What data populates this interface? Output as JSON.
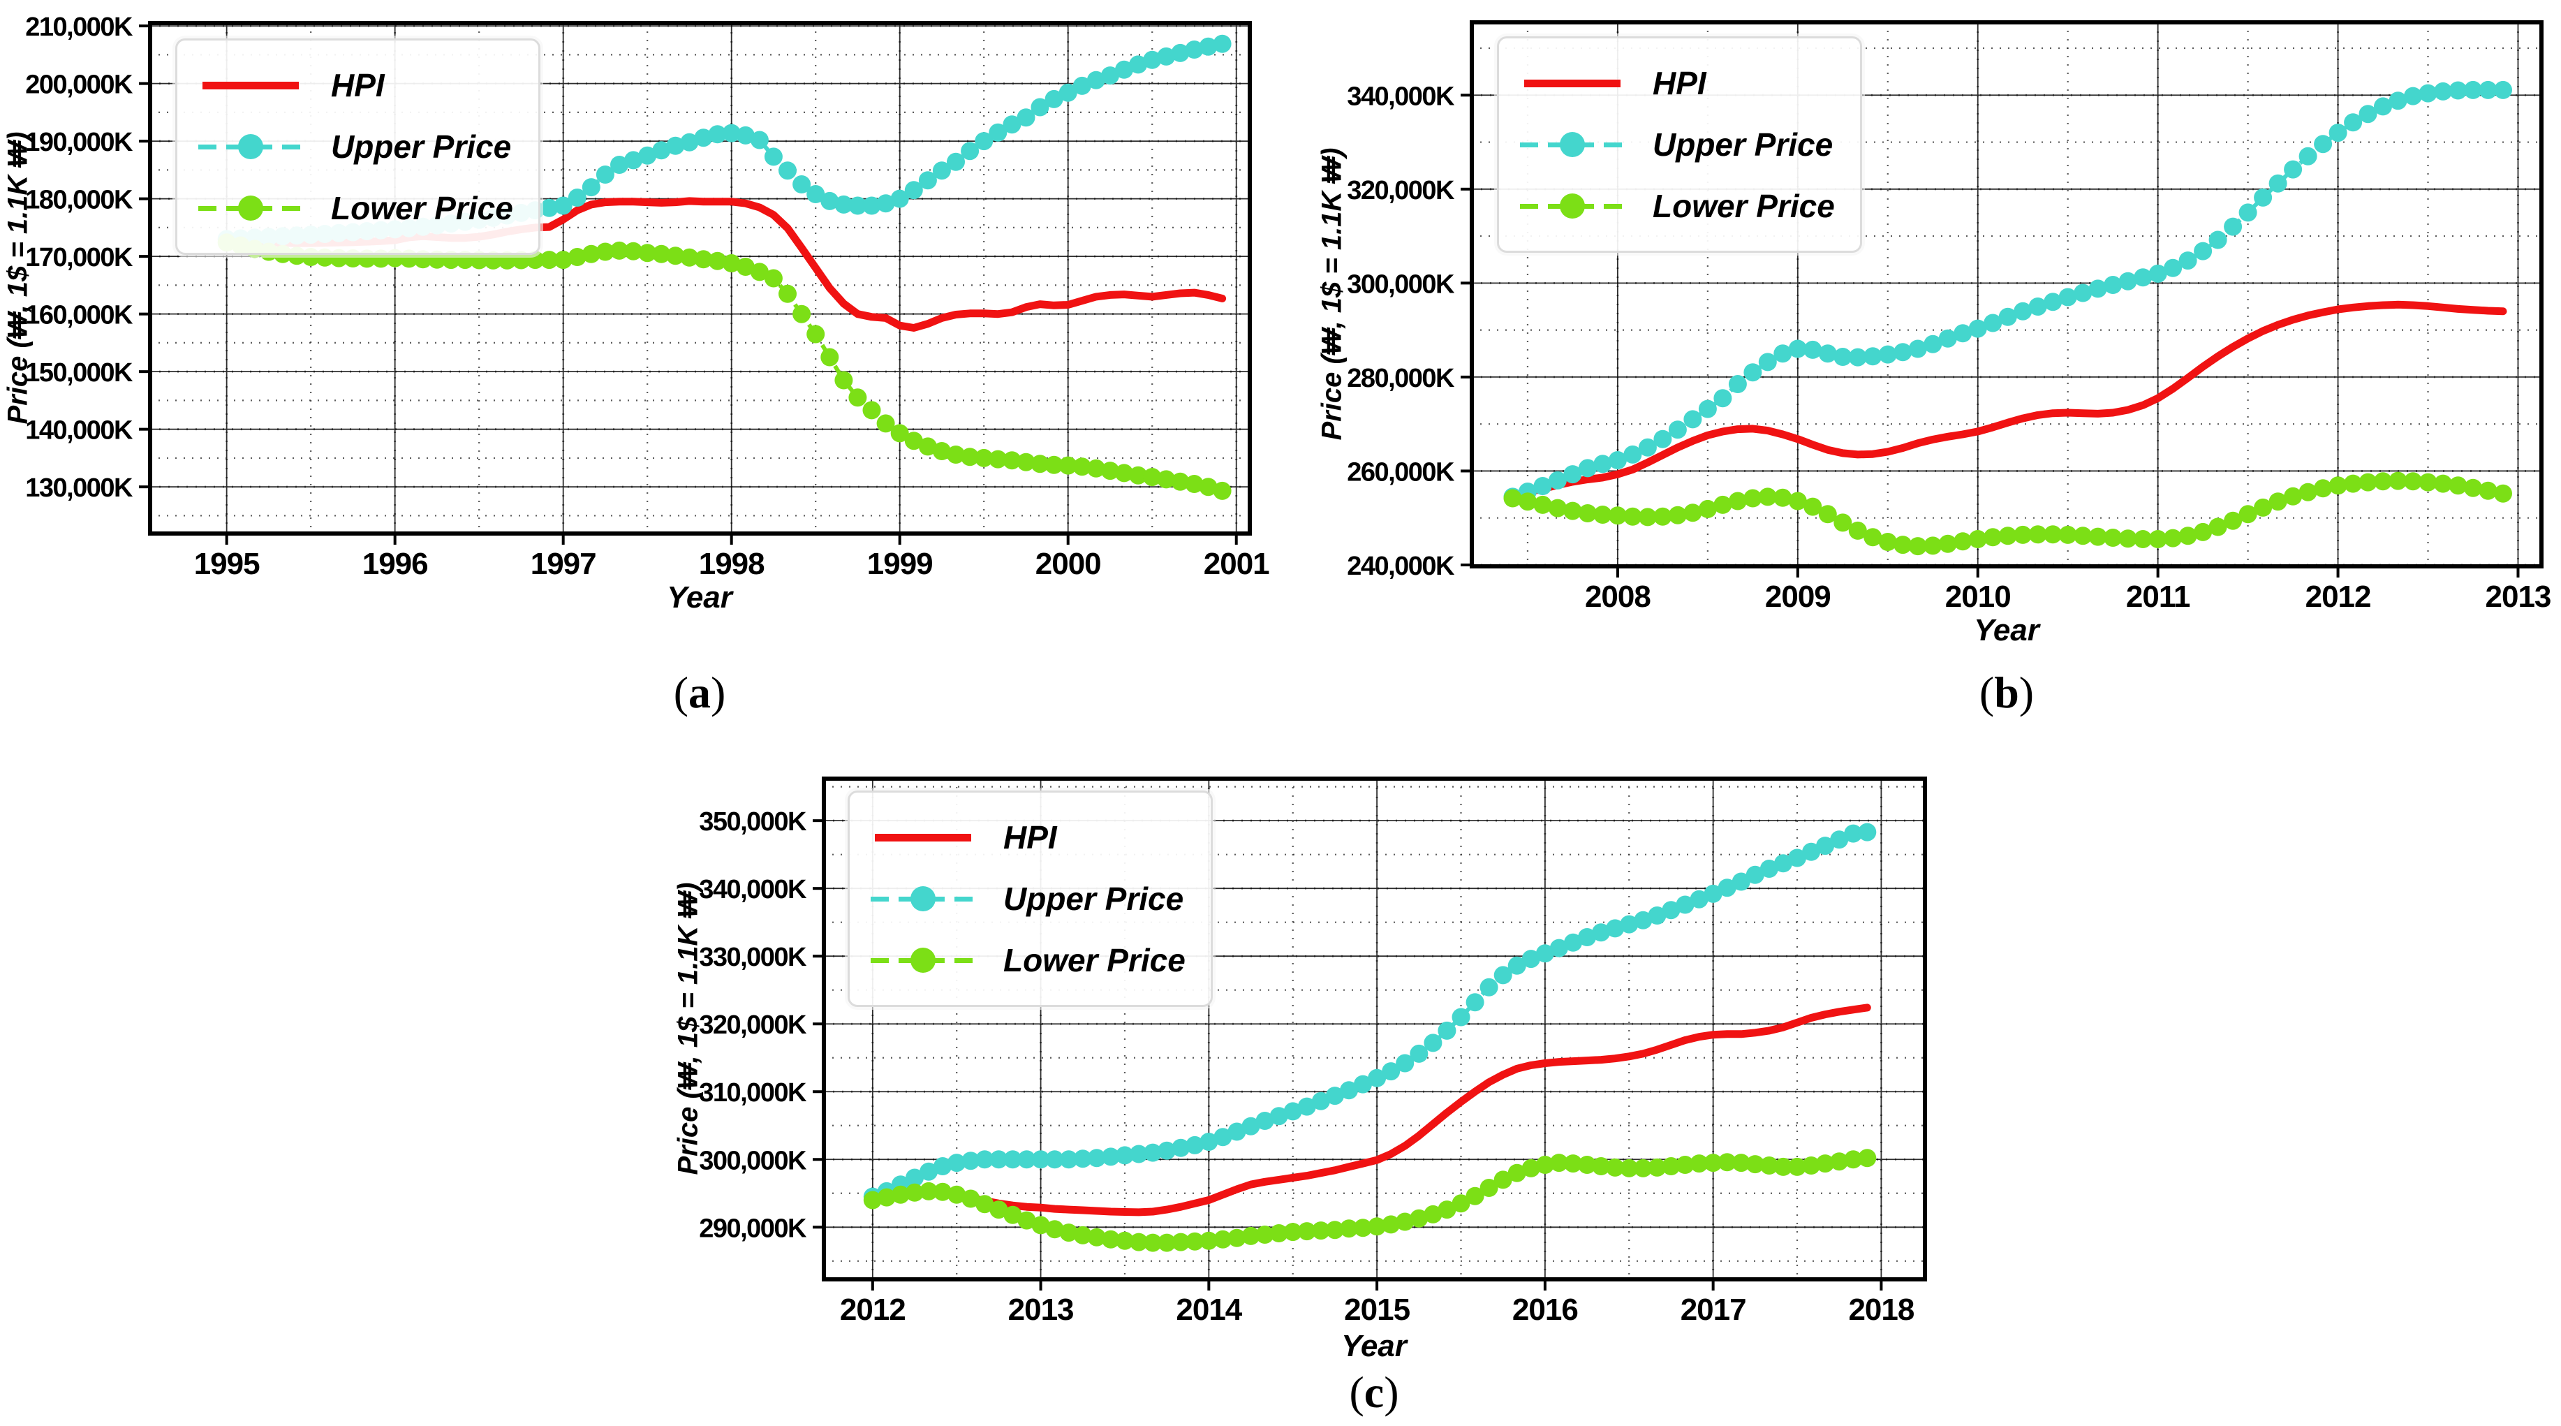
{
  "figure": {
    "background": "#ffffff"
  },
  "legend_entries": [
    "HPI",
    "Upper Price",
    "Lower Price"
  ],
  "colors": {
    "hpi": "#f01212",
    "upper": "#44d6cd",
    "lower": "#7cdf16",
    "grid": "#2e2e2e",
    "spine": "#000000"
  },
  "chart_data": [
    {
      "id": "a",
      "type": "line",
      "caption": {
        "open": "(",
        "letter": "a",
        "close": ")"
      },
      "xlabel": "Year",
      "ylabel": "Price (₩, 1$ = 1.1K ₩)",
      "legend": {
        "position": "upper left",
        "entries": [
          "HPI",
          "Upper Price",
          "Lower Price"
        ]
      },
      "xlim": [
        1994.545,
        2001.08
      ],
      "ylim": [
        121900,
        210500
      ],
      "grid": true,
      "xticks": [
        {
          "v": 1995,
          "label": "1995"
        },
        {
          "v": 1996,
          "label": "1996"
        },
        {
          "v": 1997,
          "label": "1997"
        },
        {
          "v": 1998,
          "label": "1998"
        },
        {
          "v": 1999,
          "label": "1999"
        },
        {
          "v": 2000,
          "label": "2000"
        },
        {
          "v": 2001,
          "label": "2001"
        }
      ],
      "yticks": [
        {
          "v": 130000,
          "label": "130,000K"
        },
        {
          "v": 140000,
          "label": "140,000K"
        },
        {
          "v": 150000,
          "label": "150,000K"
        },
        {
          "v": 160000,
          "label": "160,000K"
        },
        {
          "v": 170000,
          "label": "170,000K"
        },
        {
          "v": 180000,
          "label": "180,000K"
        },
        {
          "v": 190000,
          "label": "190,000K"
        },
        {
          "v": 200000,
          "label": "200,000K"
        },
        {
          "v": 210000,
          "label": "210,000K"
        }
      ],
      "x_start": 1995.0,
      "x_step": 0.083333,
      "series": [
        {
          "name": "HPI",
          "color": "#f01212",
          "line_style": "solid",
          "marker": "none",
          "values": [
            172600,
            172500,
            172450,
            172400,
            172350,
            172300,
            172300,
            172350,
            172400,
            172450,
            172550,
            172650,
            172800,
            173300,
            173500,
            173350,
            173200,
            173200,
            173400,
            173800,
            174300,
            174700,
            175000,
            175100,
            176400,
            178000,
            179000,
            179400,
            179500,
            179500,
            179400,
            179300,
            179400,
            179600,
            179500,
            179500,
            179500,
            179200,
            178500,
            177200,
            174900,
            171500,
            168000,
            164500,
            161800,
            160000,
            159500,
            159300,
            158000,
            157600,
            158300,
            159300,
            159900,
            160100,
            160100,
            160000,
            160300,
            161200,
            161700,
            161500,
            161600,
            162300,
            163000,
            163300,
            163400,
            163200,
            163000,
            163300,
            163600,
            163700,
            163300,
            162700
          ]
        },
        {
          "name": "Upper Price",
          "color": "#44d6cd",
          "line_style": "dashed",
          "marker": "circle",
          "values": [
            173000,
            173120,
            173250,
            173380,
            173500,
            173620,
            173760,
            173900,
            174050,
            174200,
            174380,
            174550,
            174700,
            174900,
            175150,
            175400,
            175700,
            176000,
            176350,
            176700,
            177100,
            177550,
            178000,
            178400,
            178800,
            180200,
            182000,
            184200,
            185900,
            186700,
            187500,
            188400,
            189200,
            189800,
            190600,
            191200,
            191400,
            191000,
            190200,
            187300,
            184900,
            182500,
            180800,
            179600,
            179000,
            178800,
            178800,
            179200,
            180000,
            181500,
            183200,
            184900,
            186400,
            188300,
            190000,
            191500,
            192900,
            194100,
            195900,
            197300,
            198400,
            199600,
            200600,
            201400,
            202400,
            203300,
            204100,
            204700,
            205300,
            205900,
            206400,
            206900
          ]
        },
        {
          "name": "Lower Price",
          "color": "#7cdf16",
          "line_style": "dashed",
          "marker": "circle",
          "values": [
            172400,
            171900,
            171300,
            170800,
            170400,
            170100,
            169900,
            169800,
            169700,
            169650,
            169600,
            169600,
            169700,
            169600,
            169500,
            169450,
            169400,
            169400,
            169350,
            169300,
            169300,
            169350,
            169400,
            169400,
            169400,
            169900,
            170400,
            170800,
            171000,
            170900,
            170600,
            170400,
            170100,
            169800,
            169500,
            169200,
            168800,
            168200,
            167300,
            166200,
            163500,
            160000,
            156500,
            152500,
            148500,
            145500,
            143300,
            141000,
            139300,
            138000,
            137000,
            136200,
            135600,
            135200,
            135000,
            134800,
            134600,
            134300,
            134000,
            133800,
            133700,
            133500,
            133200,
            132800,
            132400,
            132000,
            131700,
            131300,
            130900,
            130500,
            130000,
            129300
          ]
        }
      ]
    },
    {
      "id": "b",
      "type": "line",
      "caption": {
        "open": "(",
        "letter": "b",
        "close": ")"
      },
      "xlabel": "Year",
      "ylabel": "Price (₩, 1$ = 1.1K ₩)",
      "legend": {
        "position": "upper left",
        "entries": [
          "HPI",
          "Upper Price",
          "Lower Price"
        ]
      },
      "xlim": [
        2007.19,
        2013.13
      ],
      "ylim": [
        239700,
        355500
      ],
      "grid": true,
      "xticks": [
        {
          "v": 2008,
          "label": "2008"
        },
        {
          "v": 2009,
          "label": "2009"
        },
        {
          "v": 2010,
          "label": "2010"
        },
        {
          "v": 2011,
          "label": "2011"
        },
        {
          "v": 2012,
          "label": "2012"
        },
        {
          "v": 2013,
          "label": "2013"
        }
      ],
      "yticks": [
        {
          "v": 240000,
          "label": "240,000K"
        },
        {
          "v": 260000,
          "label": "260,000K"
        },
        {
          "v": 280000,
          "label": "280,000K"
        },
        {
          "v": 300000,
          "label": "300,000K"
        },
        {
          "v": 320000,
          "label": "320,000K"
        },
        {
          "v": 340000,
          "label": "340,000K"
        }
      ],
      "x_start": 2007.4167,
      "x_step": 0.083333,
      "series": [
        {
          "name": "HPI",
          "color": "#f01212",
          "line_style": "solid",
          "marker": "none",
          "values": [
            254800,
            255500,
            256200,
            257000,
            257700,
            258200,
            258600,
            259300,
            260300,
            261800,
            263400,
            265000,
            266400,
            267600,
            268400,
            268900,
            269000,
            268600,
            267800,
            266800,
            265600,
            264500,
            263800,
            263500,
            263600,
            264100,
            264900,
            265900,
            266700,
            267300,
            267800,
            268400,
            269300,
            270300,
            271200,
            271900,
            272300,
            272400,
            272300,
            272200,
            272400,
            273000,
            274000,
            275500,
            277500,
            279800,
            282200,
            284400,
            286400,
            288200,
            289800,
            291100,
            292200,
            293100,
            293800,
            294400,
            294800,
            295100,
            295300,
            295400,
            295300,
            295100,
            294800,
            294500,
            294300,
            294100,
            294000
          ]
        },
        {
          "name": "Upper Price",
          "color": "#44d6cd",
          "line_style": "dashed",
          "marker": "circle",
          "values": [
            254500,
            255600,
            256800,
            258000,
            259300,
            260600,
            261500,
            262300,
            263500,
            265000,
            266800,
            268800,
            271000,
            273200,
            275500,
            278500,
            281000,
            283200,
            285000,
            286000,
            285800,
            285000,
            284300,
            284200,
            284400,
            284800,
            285300,
            286000,
            287000,
            288200,
            289300,
            290300,
            291500,
            292800,
            294000,
            295000,
            296000,
            297000,
            297900,
            298800,
            299600,
            300400,
            301200,
            302000,
            303200,
            304800,
            306800,
            309200,
            312000,
            315000,
            318200,
            321200,
            324200,
            327000,
            329600,
            332000,
            334200,
            336000,
            337600,
            338800,
            339800,
            340400,
            340800,
            341000,
            341100,
            341100,
            341100
          ]
        },
        {
          "name": "Lower Price",
          "color": "#7cdf16",
          "line_style": "dashed",
          "marker": "circle",
          "values": [
            254200,
            253500,
            252800,
            252100,
            251500,
            251000,
            250700,
            250500,
            250300,
            250200,
            250300,
            250600,
            251100,
            251900,
            252800,
            253600,
            254200,
            254500,
            254300,
            253600,
            252400,
            250800,
            249000,
            247300,
            245900,
            244900,
            244300,
            244000,
            244100,
            244500,
            245000,
            245500,
            245900,
            246200,
            246400,
            246500,
            246500,
            246400,
            246200,
            246000,
            245800,
            245600,
            245500,
            245500,
            245700,
            246200,
            247000,
            248100,
            249400,
            250800,
            252200,
            253500,
            254600,
            255500,
            256300,
            256900,
            257300,
            257600,
            257800,
            257900,
            257800,
            257600,
            257300,
            256900,
            256400,
            255800,
            255200
          ]
        }
      ]
    },
    {
      "id": "c",
      "type": "line",
      "caption": {
        "open": "(",
        "letter": "c",
        "close": ")"
      },
      "xlabel": "Year",
      "ylabel": "Price (₩, 1$ = 1.1K ₩)",
      "legend": {
        "position": "upper left",
        "entries": [
          "HPI",
          "Upper Price",
          "Lower Price"
        ]
      },
      "xlim": [
        2011.71,
        2018.26
      ],
      "ylim": [
        282300,
        356200
      ],
      "grid": true,
      "xticks": [
        {
          "v": 2012,
          "label": "2012"
        },
        {
          "v": 2013,
          "label": "2013"
        },
        {
          "v": 2014,
          "label": "2014"
        },
        {
          "v": 2015,
          "label": "2015"
        },
        {
          "v": 2016,
          "label": "2016"
        },
        {
          "v": 2017,
          "label": "2017"
        },
        {
          "v": 2018,
          "label": "2018"
        }
      ],
      "yticks": [
        {
          "v": 290000,
          "label": "290,000K"
        },
        {
          "v": 300000,
          "label": "300,000K"
        },
        {
          "v": 310000,
          "label": "310,000K"
        },
        {
          "v": 320000,
          "label": "320,000K"
        },
        {
          "v": 330000,
          "label": "330,000K"
        },
        {
          "v": 340000,
          "label": "340,000K"
        },
        {
          "v": 350000,
          "label": "350,000K"
        }
      ],
      "x_start": 2012.0,
      "x_step": 0.083333,
      "series": [
        {
          "name": "HPI",
          "color": "#f01212",
          "line_style": "solid",
          "marker": "none",
          "values": [
            294800,
            295000,
            295200,
            295300,
            295200,
            295000,
            294700,
            294300,
            293900,
            293500,
            293200,
            293000,
            292900,
            292700,
            292600,
            292500,
            292400,
            292300,
            292250,
            292200,
            292300,
            292600,
            293000,
            293500,
            294000,
            294800,
            295600,
            296300,
            296700,
            297000,
            297300,
            297600,
            298000,
            298400,
            298900,
            299400,
            299900,
            300800,
            302000,
            303500,
            305200,
            306900,
            308500,
            310000,
            311400,
            312500,
            313400,
            313900,
            314200,
            314400,
            314500,
            314600,
            314700,
            314900,
            315200,
            315600,
            316200,
            316900,
            317600,
            318100,
            318400,
            318500,
            318500,
            318700,
            319000,
            319500,
            320200,
            320900,
            321400,
            321800,
            322100,
            322400
          ]
        },
        {
          "name": "Upper Price",
          "color": "#44d6cd",
          "line_style": "dashed",
          "marker": "circle",
          "values": [
            294500,
            295300,
            296300,
            297300,
            298200,
            299000,
            299500,
            299800,
            300000,
            300000,
            300000,
            300000,
            300000,
            300000,
            300000,
            300100,
            300200,
            300400,
            300600,
            300800,
            301000,
            301300,
            301700,
            302100,
            302600,
            303300,
            304100,
            304900,
            305700,
            306400,
            307100,
            307800,
            308600,
            309400,
            310200,
            311100,
            312000,
            313000,
            314200,
            315600,
            317200,
            319000,
            321000,
            323200,
            325400,
            327200,
            328600,
            329600,
            330400,
            331200,
            332000,
            332800,
            333500,
            334100,
            334700,
            335300,
            336000,
            336800,
            337600,
            338400,
            339200,
            340100,
            341000,
            342000,
            342900,
            343700,
            344500,
            345400,
            346300,
            347200,
            348100,
            348300
          ]
        },
        {
          "name": "Lower Price",
          "color": "#7cdf16",
          "line_style": "dashed",
          "marker": "circle",
          "values": [
            294000,
            294400,
            294800,
            295100,
            295300,
            295200,
            294800,
            294200,
            293400,
            292600,
            291800,
            291000,
            290300,
            289700,
            289200,
            288800,
            288500,
            288200,
            288000,
            287800,
            287700,
            287700,
            287800,
            287900,
            288000,
            288200,
            288400,
            288700,
            288900,
            289100,
            289300,
            289400,
            289500,
            289600,
            289800,
            289900,
            290100,
            290400,
            290800,
            291300,
            291900,
            292600,
            293500,
            294600,
            295800,
            297000,
            298000,
            298700,
            299200,
            299500,
            299400,
            299200,
            299000,
            298800,
            298700,
            298700,
            298800,
            299000,
            299200,
            299400,
            299500,
            299600,
            299500,
            299300,
            299100,
            298900,
            298900,
            299100,
            299400,
            299700,
            300000,
            300200
          ]
        }
      ]
    }
  ]
}
